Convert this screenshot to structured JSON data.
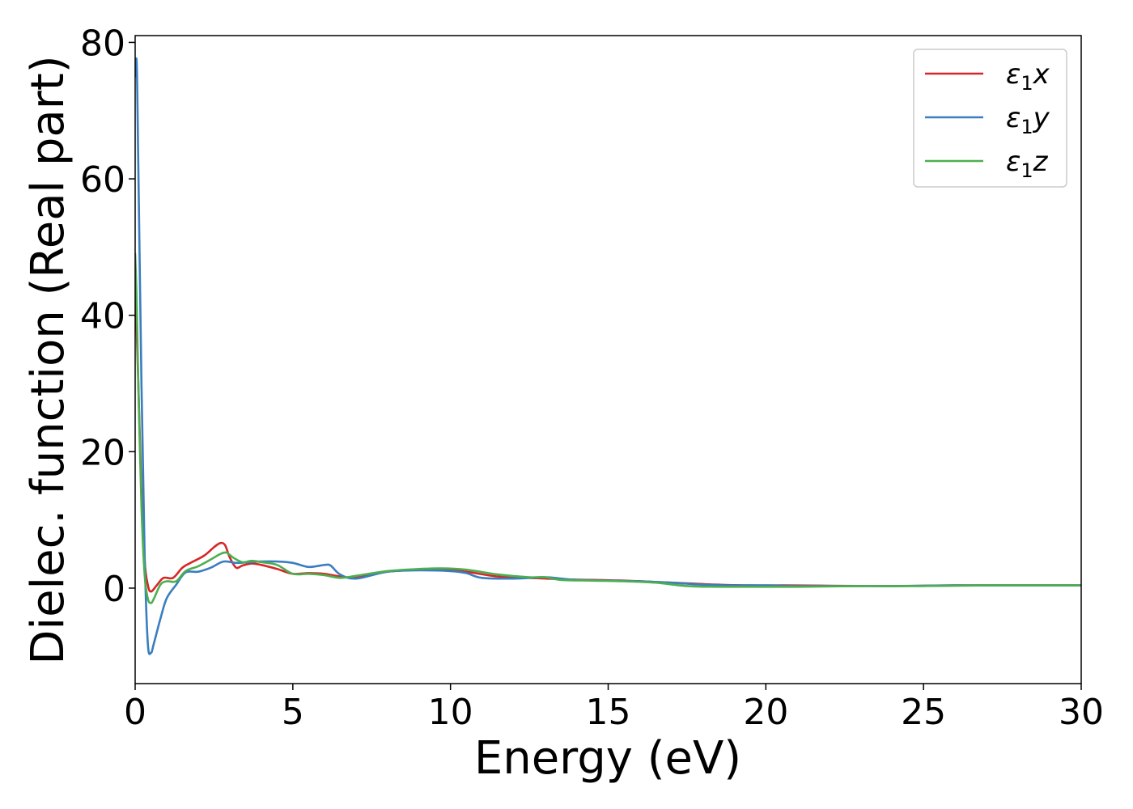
{
  "chart_data": {
    "type": "line",
    "title": "",
    "xlabel": "Energy (eV)",
    "ylabel": "Dielec. function (Real part)",
    "xlim": [
      0,
      30
    ],
    "ylim": [
      -14,
      81
    ],
    "xticks": [
      0,
      5,
      10,
      15,
      20,
      25,
      30
    ],
    "yticks": [
      0,
      20,
      40,
      60,
      80
    ],
    "grid": false,
    "legend": {
      "position": "top-right",
      "entries": [
        {
          "symbol": "ε",
          "sub": "1",
          "var": "x"
        },
        {
          "symbol": "ε",
          "sub": "1",
          "var": "y"
        },
        {
          "symbol": "ε",
          "sub": "1",
          "var": "z"
        }
      ]
    },
    "series": [
      {
        "color": "#d62728",
        "x": [
          0,
          0.1,
          0.2,
          0.3,
          0.4,
          0.5,
          0.7,
          0.9,
          1.2,
          1.5,
          1.8,
          2.2,
          2.5,
          2.7,
          2.85,
          3.0,
          3.2,
          3.4,
          3.7,
          4.0,
          4.5,
          5.0,
          5.5,
          6.0,
          6.5,
          7.0,
          8.0,
          9.0,
          9.7,
          10.5,
          11.5,
          12.5,
          13.5,
          14.5,
          15.5,
          16.5,
          17.5,
          18.5,
          19.5,
          20.5,
          22,
          24,
          26,
          28,
          30
        ],
        "y": [
          45,
          30,
          14,
          4,
          0.5,
          -0.5,
          0.5,
          1.5,
          1.5,
          3,
          3.8,
          4.8,
          6,
          6.6,
          6.3,
          4.5,
          3.0,
          3.3,
          3.6,
          3.4,
          2.8,
          2.1,
          2.2,
          2.1,
          1.7,
          1.6,
          2.4,
          2.7,
          2.8,
          2.4,
          1.7,
          1.5,
          1.3,
          1.2,
          1.1,
          0.9,
          0.7,
          0.5,
          0.4,
          0.4,
          0.35,
          0.3,
          0.4,
          0.4,
          0.4
        ]
      },
      {
        "color": "#3a7ebf",
        "x": [
          0,
          0.05,
          0.1,
          0.2,
          0.3,
          0.4,
          0.5,
          0.6,
          0.8,
          1.0,
          1.3,
          1.6,
          2.0,
          2.4,
          2.8,
          3.2,
          3.6,
          4.0,
          4.5,
          5.0,
          5.5,
          6.0,
          6.2,
          6.5,
          7.0,
          8.0,
          9.0,
          10.0,
          10.5,
          11.0,
          12.0,
          13.0,
          13.5,
          14.0,
          15.0,
          16.0,
          17.0,
          18.0,
          19.0,
          20.0,
          21,
          22,
          24,
          26,
          28,
          30
        ],
        "y": [
          75,
          77,
          62,
          30,
          5,
          -8,
          -9.5,
          -8,
          -4.5,
          -1.5,
          0.5,
          2.3,
          2.4,
          3,
          3.9,
          3.7,
          3.8,
          3.9,
          3.9,
          3.7,
          3.1,
          3.4,
          3.3,
          2.0,
          1.4,
          2.4,
          2.6,
          2.5,
          2.2,
          1.5,
          1.4,
          1.6,
          1.4,
          1.2,
          1.1,
          1.0,
          0.8,
          0.5,
          0.4,
          0.4,
          0.3,
          0.3,
          0.3,
          0.4,
          0.4,
          0.4
        ]
      },
      {
        "color": "#4caf4f",
        "x": [
          0,
          0.05,
          0.1,
          0.2,
          0.3,
          0.4,
          0.5,
          0.6,
          0.8,
          1.0,
          1.3,
          1.6,
          2.0,
          2.4,
          2.7,
          2.9,
          3.1,
          3.4,
          3.7,
          4.0,
          4.5,
          5.0,
          5.5,
          6.0,
          6.5,
          7.0,
          8.0,
          9.0,
          9.7,
          10.5,
          11.5,
          12.5,
          13.0,
          13.5,
          14.5,
          15.5,
          16.5,
          17.5,
          18.5,
          19.5,
          21,
          23,
          25,
          27,
          30
        ],
        "y": [
          49,
          42,
          30,
          12,
          2,
          -1.5,
          -2.2,
          -1.5,
          0.5,
          1.0,
          1.0,
          2.5,
          3.2,
          4.2,
          5.0,
          5.2,
          4.5,
          3.8,
          4.0,
          3.8,
          3.4,
          2.1,
          2.1,
          1.9,
          1.5,
          1.8,
          2.5,
          2.8,
          2.9,
          2.7,
          2.0,
          1.6,
          1.6,
          1.2,
          1.1,
          1.0,
          0.8,
          0.3,
          0.2,
          0.2,
          0.2,
          0.3,
          0.3,
          0.4,
          0.4
        ]
      }
    ]
  }
}
